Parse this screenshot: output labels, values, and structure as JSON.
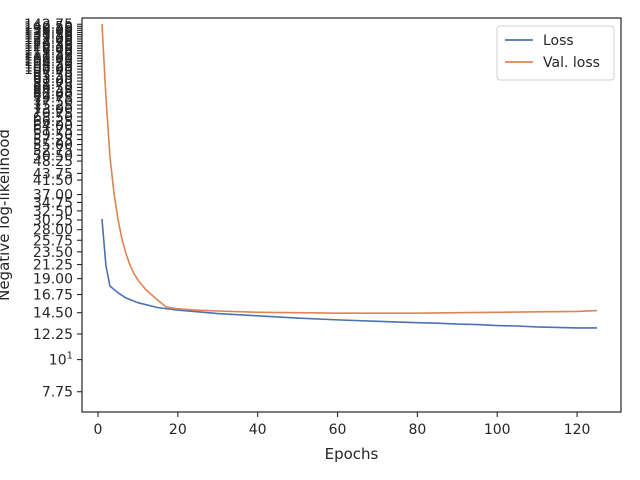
{
  "chart_data": {
    "type": "line",
    "title": "",
    "xlabel": "Epochs",
    "ylabel": "Negative log-likelihood",
    "xlim": [
      -4,
      131
    ],
    "ylim": [
      6.6,
      150
    ],
    "yscale": "log",
    "grid": false,
    "legend_position": "top-right",
    "x_ticks": [
      0,
      20,
      40,
      60,
      80,
      100,
      120
    ],
    "x_tick_labels": [
      "0",
      "20",
      "40",
      "60",
      "80",
      "100",
      "120"
    ],
    "y_ticks": [
      7.75,
      10,
      12.25,
      14.5,
      16.75,
      19.0,
      21.25,
      23.5,
      25.75,
      28.0,
      30.25,
      32.5,
      34.75,
      37.0,
      41.5,
      43.75,
      48.25,
      50.5,
      52.75,
      55.0,
      57.25,
      59.5,
      61.75,
      64.0,
      66.25,
      68.5,
      70.75,
      73.0,
      75.25,
      77.5,
      79.75,
      82.0,
      84.25,
      86.5,
      88.75,
      91.0,
      93.25,
      95.5,
      97.75,
      100.0,
      102.25,
      104.5,
      106.75,
      109.0,
      111.25,
      113.5,
      115.75,
      118.0,
      120.25,
      122.5,
      124.75,
      127.0,
      129.25,
      131.5,
      133.75,
      136.0,
      138.25,
      140.5,
      142.75
    ],
    "y_tick_labels": [
      "7.75",
      "10¹",
      "12.25",
      "14.50",
      "16.75",
      "19.00",
      "21.25",
      "23.50",
      "25.75",
      "28.00",
      "30.25",
      "32.50",
      "34.75",
      "37.00",
      "41.50",
      "43.75",
      "48.25",
      "50.50",
      "52.75",
      "55.00",
      "57.25",
      "59.50",
      "61.75",
      "64.00",
      "66.25",
      "68.50",
      "70.75",
      "73.00",
      "75.25",
      "77.50",
      "79.75",
      "82.00",
      "84.25",
      "86.50",
      "88.75",
      "91.00",
      "93.25",
      "95.50",
      "97.75",
      "100.00",
      "102.25",
      "104.50",
      "106.75",
      "109.00",
      "111.25",
      "113.50",
      "115.75",
      "118.00",
      "120.25",
      "122.50",
      "124.75",
      "127.00",
      "129.25",
      "131.50",
      "133.75",
      "136.00",
      "138.25",
      "140.50",
      "142.75"
    ],
    "series": [
      {
        "name": "Loss",
        "color": "#4c72b0",
        "x": [
          1,
          2,
          3,
          5,
          7,
          10,
          15,
          20,
          25,
          30,
          40,
          50,
          60,
          70,
          80,
          85,
          90,
          95,
          100,
          105,
          110,
          115,
          120,
          125
        ],
        "y": [
          30.5,
          21.0,
          17.9,
          17.0,
          16.3,
          15.7,
          15.1,
          14.8,
          14.6,
          14.4,
          14.15,
          13.9,
          13.7,
          13.55,
          13.4,
          13.35,
          13.25,
          13.2,
          13.1,
          13.05,
          12.95,
          12.9,
          12.85,
          12.85
        ]
      },
      {
        "name": "Val. loss",
        "color": "#dd8452",
        "x": [
          1,
          2,
          3,
          4,
          5,
          6,
          7,
          8,
          9,
          10,
          12,
          15,
          17,
          20,
          25,
          30,
          40,
          50,
          60,
          70,
          80,
          90,
          100,
          110,
          120,
          125
        ],
        "y": [
          143,
          80,
          50,
          37.5,
          30.5,
          26.0,
          23.2,
          21.2,
          19.8,
          18.8,
          17.4,
          16.0,
          15.2,
          14.95,
          14.8,
          14.7,
          14.55,
          14.5,
          14.45,
          14.45,
          14.45,
          14.5,
          14.55,
          14.6,
          14.65,
          14.75
        ]
      }
    ]
  }
}
